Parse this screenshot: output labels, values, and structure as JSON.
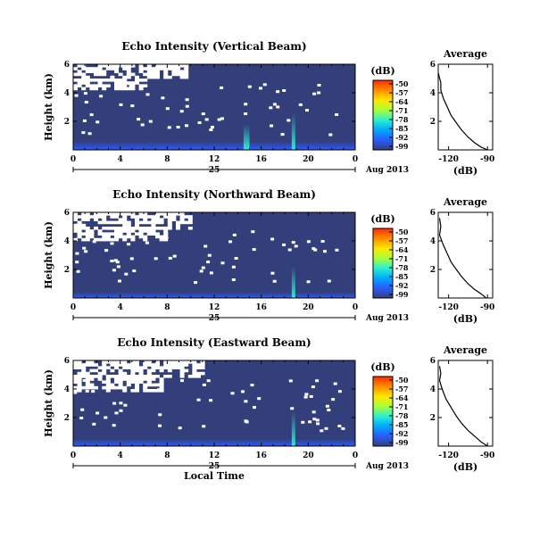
{
  "chart_data": [
    {
      "type": "heatmap",
      "title": "Echo Intensity (Vertical Beam)",
      "xlabel": "",
      "ylabel": "Height (km)",
      "x_ticks": [
        "0",
        "4",
        "8",
        "12",
        "16",
        "20",
        "0"
      ],
      "x_day_label": "25",
      "date_label": "Aug 2013",
      "y_ticks": [
        "6",
        "4",
        "2"
      ],
      "xlim": [
        0,
        24
      ],
      "ylim": [
        0,
        6
      ],
      "colorbar": {
        "label": "(dB)",
        "ticks": [
          "-50",
          "-57",
          "-64",
          "-71",
          "-78",
          "-85",
          "-92",
          "-99"
        ]
      },
      "regions": [
        {
          "x": [
            0.0,
            9.5
          ],
          "y": [
            5.0,
            6.0
          ],
          "level": "no data"
        },
        {
          "x": [
            0.0,
            6.0
          ],
          "y": [
            4.3,
            5.0
          ],
          "level": "no data"
        },
        {
          "x": [
            0,
            24
          ],
          "y": [
            0.0,
            0.6
          ],
          "level": -90
        },
        {
          "x": [
            14.5,
            15.0
          ],
          "y": [
            0.0,
            1.8
          ],
          "level": -80
        },
        {
          "x": [
            18.6,
            18.9
          ],
          "y": [
            0.0,
            2.6
          ],
          "level": -75
        }
      ],
      "profile": {
        "title": "Average",
        "xlabel": "(dB)",
        "x_ticks": [
          "-120",
          "-90"
        ],
        "y_ticks": [
          "6",
          "4",
          "2"
        ],
        "xlim": [
          -128,
          -86
        ],
        "ylim": [
          0,
          6
        ],
        "points": [
          [
            -128,
            5.4
          ],
          [
            -126,
            4.7
          ],
          [
            -126,
            4.2
          ],
          [
            -124,
            3.6
          ],
          [
            -121,
            3.0
          ],
          [
            -118,
            2.4
          ],
          [
            -114,
            1.9
          ],
          [
            -110,
            1.4
          ],
          [
            -105,
            0.9
          ],
          [
            -100,
            0.5
          ],
          [
            -95,
            0.2
          ],
          [
            -90,
            0.0
          ]
        ]
      }
    },
    {
      "type": "heatmap",
      "title": "Echo Intensity (Northward Beam)",
      "xlabel": "",
      "ylabel": "Height (km)",
      "x_ticks": [
        "0",
        "4",
        "8",
        "12",
        "16",
        "20",
        "0"
      ],
      "x_day_label": "25",
      "date_label": "Aug 2013",
      "y_ticks": [
        "6",
        "4",
        "2"
      ],
      "xlim": [
        0,
        24
      ],
      "ylim": [
        0,
        6
      ],
      "colorbar": {
        "label": "(dB)",
        "ticks": [
          "-50",
          "-57",
          "-64",
          "-71",
          "-78",
          "-85",
          "-92",
          "-99"
        ]
      },
      "regions": [
        {
          "x": [
            0.0,
            10.0
          ],
          "y": [
            5.0,
            6.0
          ],
          "level": "no data"
        },
        {
          "x": [
            0.0,
            8.0
          ],
          "y": [
            4.2,
            5.0
          ],
          "level": "no data"
        },
        {
          "x": [
            0,
            24
          ],
          "y": [
            0.0,
            0.4
          ],
          "level": -92
        },
        {
          "x": [
            18.6,
            18.9
          ],
          "y": [
            0.0,
            2.2
          ],
          "level": -80
        }
      ],
      "profile": {
        "title": "Average",
        "xlabel": "(dB)",
        "x_ticks": [
          "-120",
          "-90"
        ],
        "y_ticks": [
          "6",
          "4",
          "2"
        ],
        "xlim": [
          -128,
          -86
        ],
        "ylim": [
          0,
          6
        ],
        "points": [
          [
            -127,
            5.6
          ],
          [
            -126,
            5.0
          ],
          [
            -127,
            4.4
          ],
          [
            -124,
            3.7
          ],
          [
            -121,
            3.1
          ],
          [
            -118,
            2.5
          ],
          [
            -114,
            2.0
          ],
          [
            -110,
            1.5
          ],
          [
            -105,
            1.0
          ],
          [
            -100,
            0.6
          ],
          [
            -95,
            0.3
          ],
          [
            -91,
            0.0
          ]
        ]
      }
    },
    {
      "type": "heatmap",
      "title": "Echo Intensity (Eastward Beam)",
      "xlabel": "Local Time",
      "ylabel": "Height (km)",
      "x_ticks": [
        "0",
        "4",
        "8",
        "12",
        "16",
        "20",
        "0"
      ],
      "x_day_label": "25",
      "date_label": "Aug 2013",
      "y_ticks": [
        "6",
        "4",
        "2"
      ],
      "xlim": [
        0,
        24
      ],
      "ylim": [
        0,
        6
      ],
      "colorbar": {
        "label": "(dB)",
        "ticks": [
          "-50",
          "-57",
          "-64",
          "-71",
          "-78",
          "-85",
          "-92",
          "-99"
        ]
      },
      "regions": [
        {
          "x": [
            0.0,
            11.0
          ],
          "y": [
            5.0,
            6.0
          ],
          "level": "no data"
        },
        {
          "x": [
            0.0,
            7.5
          ],
          "y": [
            4.0,
            5.0
          ],
          "level": "no data"
        },
        {
          "x": [
            0,
            24
          ],
          "y": [
            0.0,
            0.5
          ],
          "level": -90
        },
        {
          "x": [
            18.6,
            18.9
          ],
          "y": [
            0.0,
            2.4
          ],
          "level": -78
        }
      ],
      "profile": {
        "title": "Average",
        "xlabel": "(dB)",
        "x_ticks": [
          "-120",
          "-90"
        ],
        "y_ticks": [
          "6",
          "4",
          "2"
        ],
        "xlim": [
          -128,
          -86
        ],
        "ylim": [
          0,
          6
        ],
        "points": [
          [
            -127,
            5.6
          ],
          [
            -126,
            5.1
          ],
          [
            -127,
            4.6
          ],
          [
            -125,
            4.0
          ],
          [
            -122,
            3.3
          ],
          [
            -118,
            2.7
          ],
          [
            -114,
            2.1
          ],
          [
            -110,
            1.6
          ],
          [
            -105,
            1.1
          ],
          [
            -100,
            0.7
          ],
          [
            -95,
            0.3
          ],
          [
            -90,
            0.0
          ]
        ]
      }
    }
  ],
  "colors": {
    "background_level": "#333f7a",
    "no_data": "#ffffff",
    "colormap": [
      "#ff2a00",
      "#ff8c00",
      "#ffe600",
      "#a8ff3a",
      "#2af0d0",
      "#00a8ff",
      "#2a5cff",
      "#333f7a"
    ]
  }
}
